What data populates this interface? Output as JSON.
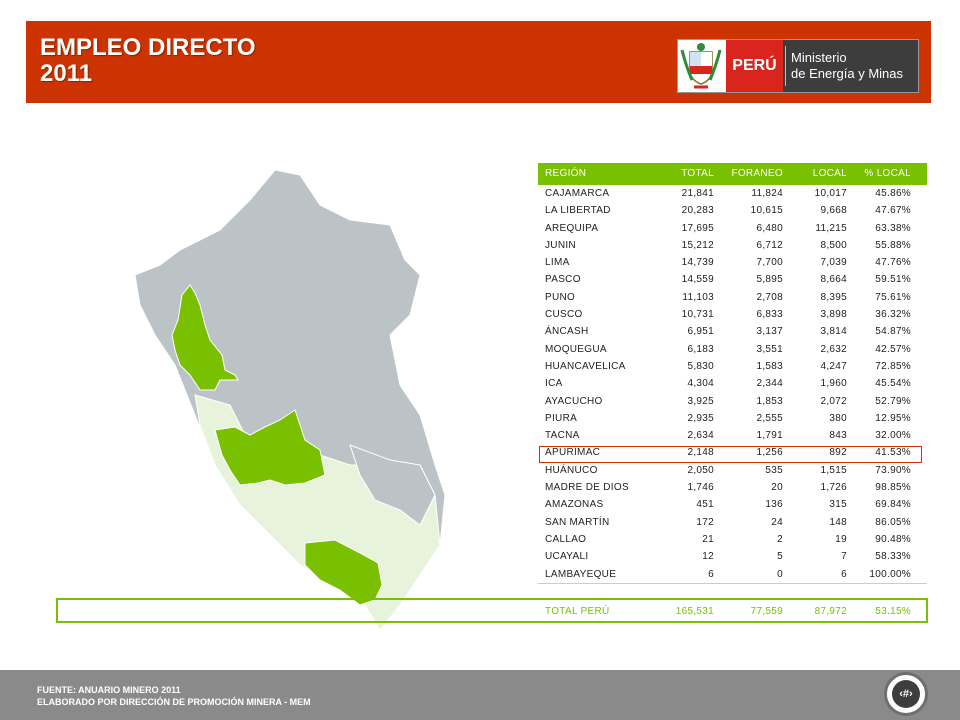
{
  "header": {
    "title_line1": "EMPLEO DIRECTO",
    "title_line2": "2011",
    "logo_country": "PERÚ",
    "logo_ministry_line1": "Ministerio",
    "logo_ministry_line2": "de Energía y Minas",
    "emblem_icon": "peru-coat-of-arms-icon"
  },
  "colors": {
    "header_bg": "#cc3300",
    "table_header_bg": "#78c000",
    "highlight_green": "#78c000",
    "map_grey": "#bcc3c6",
    "map_light": "#e8f3dc"
  },
  "table": {
    "columns": [
      "REGIÓN",
      "TOTAL",
      "FORANEO",
      "LOCAL",
      "% LOCAL"
    ],
    "rows": [
      [
        "CAJAMARCA",
        "21,841",
        "11,824",
        "10,017",
        "45.86%"
      ],
      [
        "LA LIBERTAD",
        "20,283",
        "10,615",
        "9,668",
        "47.67%"
      ],
      [
        "AREQUIPA",
        "17,695",
        "6,480",
        "11,215",
        "63.38%"
      ],
      [
        "JUNIN",
        "15,212",
        "6,712",
        "8,500",
        "55.88%"
      ],
      [
        "LIMA",
        "14,739",
        "7,700",
        "7,039",
        "47.76%"
      ],
      [
        "PASCO",
        "14,559",
        "5,895",
        "8,664",
        "59.51%"
      ],
      [
        "PUNO",
        "11,103",
        "2,708",
        "8,395",
        "75.61%"
      ],
      [
        "CUSCO",
        "10,731",
        "6,833",
        "3,898",
        "36.32%"
      ],
      [
        "ÁNCASH",
        "6,951",
        "3,137",
        "3,814",
        "54.87%"
      ],
      [
        "MOQUEGUA",
        "6,183",
        "3,551",
        "2,632",
        "42.57%"
      ],
      [
        "HUANCAVELICA",
        "5,830",
        "1,583",
        "4,247",
        "72.85%"
      ],
      [
        "ICA",
        "4,304",
        "2,344",
        "1,960",
        "45.54%"
      ],
      [
        "AYACUCHO",
        "3,925",
        "1,853",
        "2,072",
        "52.79%"
      ],
      [
        "PIURA",
        "2,935",
        "2,555",
        "380",
        "12.95%"
      ],
      [
        "TACNA",
        "2,634",
        "1,791",
        "843",
        "32.00%"
      ],
      [
        "APURÍMAC",
        "2,148",
        "1,256",
        "892",
        "41.53%"
      ],
      [
        "HUÁNUCO",
        "2,050",
        "535",
        "1,515",
        "73.90%"
      ],
      [
        "MADRE DE DIOS",
        "1,746",
        "20",
        "1,726",
        "98.85%"
      ],
      [
        "AMAZONAS",
        "451",
        "136",
        "315",
        "69.84%"
      ],
      [
        "SAN MARTÍN",
        "172",
        "24",
        "148",
        "86.05%"
      ],
      [
        "CALLAO",
        "21",
        "2",
        "19",
        "90.48%"
      ],
      [
        "UCAYALI",
        "12",
        "5",
        "7",
        "58.33%"
      ],
      [
        "LAMBAYEQUE",
        "6",
        "0",
        "6",
        "100.00%"
      ]
    ],
    "total": [
      "TOTAL PERÚ",
      "165,531",
      "77,559",
      "87,972",
      "53.15%"
    ]
  },
  "footer": {
    "source_line1": "FUENTE: ANUARIO MINERO 2011",
    "source_line2": "ELABORADO POR DIRECCIÓN DE PROMOCIÓN MINERA  - MEM",
    "page_number": "‹#›"
  }
}
